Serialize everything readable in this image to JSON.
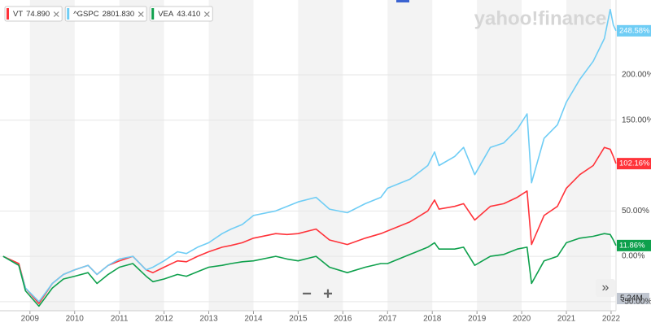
{
  "brand": "yahoo!finance",
  "controls": [
    "−",
    "+",
    "»"
  ],
  "chart_data": {
    "type": "line",
    "x": [
      2008.4,
      2008.75,
      2008.9,
      2009.2,
      2009.5,
      2009.75,
      2010.0,
      2010.3,
      2010.5,
      2010.75,
      2011.0,
      2011.3,
      2011.6,
      2011.75,
      2012.0,
      2012.3,
      2012.5,
      2012.75,
      2013.0,
      2013.3,
      2013.5,
      2013.75,
      2014.0,
      2014.5,
      2014.75,
      2015.0,
      2015.4,
      2015.7,
      2016.1,
      2016.5,
      2016.85,
      2017.0,
      2017.5,
      2017.9,
      2018.05,
      2018.15,
      2018.5,
      2018.7,
      2018.95,
      2019.3,
      2019.6,
      2019.9,
      2020.12,
      2020.22,
      2020.5,
      2020.8,
      2021.0,
      2021.3,
      2021.6,
      2021.85,
      2021.98,
      2022.05,
      2022.11
    ],
    "xlim": [
      2008.33,
      2022.11
    ],
    "xticks": [
      2009,
      2010,
      2011,
      2012,
      2013,
      2014,
      2015,
      2016,
      2017,
      2018,
      2019,
      2020,
      2021,
      2022
    ],
    "ylim": [
      -60,
      282.5
    ],
    "yticks": [
      {
        "value": 200,
        "label": "200.00%"
      },
      {
        "value": 150,
        "label": "150.00%"
      },
      {
        "value": 50,
        "label": "50.00%"
      },
      {
        "value": 0,
        "label": "0.00%"
      },
      {
        "value": -50,
        "label": "-50.00%"
      }
    ],
    "grid": true,
    "volume_label": "5.24M",
    "series": [
      {
        "name": "VT",
        "quote": "74.890",
        "color": "#ff333a",
        "values": [
          0,
          -8,
          -35,
          -52,
          -30,
          -20,
          -15,
          -10,
          -20,
          -10,
          -5,
          0,
          -15,
          -18,
          -12,
          -5,
          -6,
          0,
          5,
          10,
          12,
          15,
          20,
          25,
          24,
          25,
          30,
          18,
          13,
          20,
          25,
          28,
          38,
          50,
          62,
          52,
          55,
          58,
          40,
          55,
          58,
          65,
          72,
          13,
          45,
          55,
          75,
          90,
          100,
          120,
          118,
          110,
          102.16
        ],
        "value_labels": [
          null,
          null,
          null,
          null,
          null,
          null,
          null,
          null,
          null,
          null,
          null,
          null,
          null,
          null,
          null,
          null,
          null,
          null,
          null,
          null,
          null,
          null,
          null,
          null,
          null,
          null,
          null,
          null,
          null,
          null,
          null,
          null,
          null,
          null,
          null,
          null,
          null,
          null,
          null,
          null,
          null,
          null,
          null,
          null,
          null,
          null,
          null,
          null,
          null,
          null,
          null,
          null,
          "102.16%"
        ]
      },
      {
        "name": "^GSPC",
        "quote": "2801.830",
        "color": "#6fcdf5",
        "values": [
          0,
          -10,
          -35,
          -50,
          -30,
          -20,
          -15,
          -10,
          -20,
          -10,
          -3,
          0,
          -15,
          -12,
          -5,
          5,
          3,
          10,
          15,
          25,
          30,
          35,
          45,
          50,
          55,
          60,
          65,
          52,
          48,
          58,
          65,
          75,
          85,
          100,
          115,
          100,
          110,
          120,
          90,
          120,
          125,
          140,
          157,
          81,
          130,
          145,
          170,
          195,
          215,
          240,
          272,
          255,
          248.58
        ],
        "value_labels": [
          null,
          null,
          null,
          null,
          null,
          null,
          null,
          null,
          null,
          null,
          null,
          null,
          null,
          null,
          null,
          null,
          null,
          null,
          null,
          null,
          null,
          null,
          null,
          null,
          null,
          null,
          null,
          null,
          null,
          null,
          null,
          null,
          null,
          null,
          null,
          null,
          null,
          null,
          null,
          null,
          null,
          null,
          null,
          null,
          null,
          null,
          null,
          null,
          null,
          null,
          null,
          null,
          "248.58%"
        ]
      },
      {
        "name": "VEA",
        "quote": "43.410",
        "color": "#0ea04c",
        "values": [
          0,
          -10,
          -38,
          -55,
          -35,
          -25,
          -22,
          -18,
          -30,
          -20,
          -12,
          -8,
          -22,
          -28,
          -25,
          -20,
          -22,
          -17,
          -12,
          -10,
          -8,
          -6,
          -5,
          0,
          -3,
          -5,
          0,
          -12,
          -18,
          -12,
          -8,
          -8,
          2,
          10,
          15,
          8,
          8,
          10,
          -10,
          0,
          2,
          8,
          10,
          -30,
          -5,
          0,
          15,
          20,
          22,
          25,
          24,
          18,
          11.86
        ],
        "value_labels": [
          null,
          null,
          null,
          null,
          null,
          null,
          null,
          null,
          null,
          null,
          null,
          null,
          null,
          null,
          null,
          null,
          null,
          null,
          null,
          null,
          null,
          null,
          null,
          null,
          null,
          null,
          null,
          null,
          null,
          null,
          null,
          null,
          null,
          null,
          null,
          null,
          null,
          null,
          null,
          null,
          null,
          null,
          null,
          null,
          null,
          null,
          null,
          null,
          null,
          null,
          null,
          null,
          "11.86%"
        ]
      }
    ]
  }
}
